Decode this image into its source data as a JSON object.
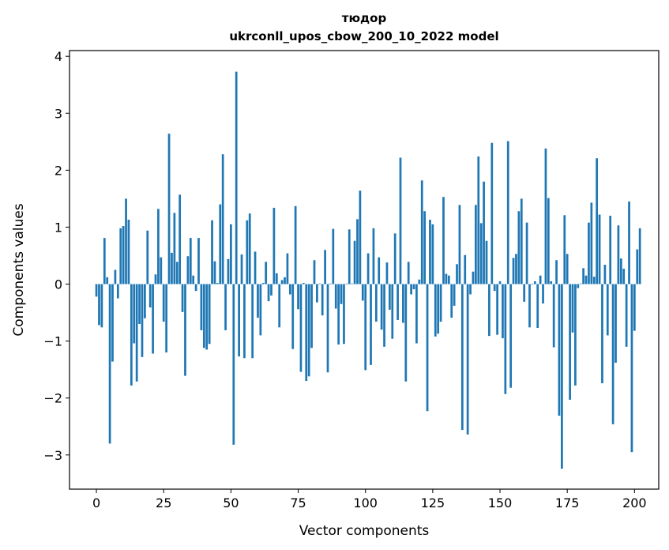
{
  "chart_data": {
    "type": "bar",
    "title_line1": "тюдор",
    "title_line2": "ukrconll_upos_cbow_200_10_2022 model",
    "xlabel": "Vector components",
    "ylabel": "Components values",
    "xlim": [
      -10,
      209
    ],
    "ylim": [
      -3.6,
      4.1
    ],
    "x_ticks": [
      0,
      25,
      50,
      75,
      100,
      125,
      150,
      175,
      200
    ],
    "y_ticks": [
      -3,
      -2,
      -1,
      0,
      1,
      2,
      3,
      4
    ],
    "y_tick_labels": [
      "−3",
      "−2",
      "−1",
      "0",
      "1",
      "2",
      "3",
      "4"
    ],
    "bar_color": "#1f77b4",
    "grid": false,
    "values": [
      -0.22,
      -0.72,
      -0.76,
      0.81,
      0.12,
      -2.8,
      -1.36,
      0.25,
      -0.25,
      0.98,
      1.02,
      1.5,
      1.13,
      -1.78,
      -1.04,
      -1.71,
      -0.7,
      -1.28,
      -0.6,
      0.94,
      -0.41,
      -1.22,
      0.17,
      1.32,
      0.47,
      -0.66,
      -1.2,
      2.64,
      0.55,
      1.25,
      0.39,
      1.57,
      -0.49,
      -1.61,
      0.49,
      0.81,
      0.15,
      -0.12,
      0.81,
      -0.81,
      -1.12,
      -1.15,
      -1.05,
      1.12,
      0.4,
      0.02,
      1.4,
      2.28,
      -0.81,
      0.44,
      1.05,
      -2.82,
      3.73,
      -1.27,
      0.52,
      -1.3,
      1.12,
      1.24,
      -1.3,
      0.57,
      -0.59,
      -0.9,
      0.02,
      0.39,
      -0.3,
      -0.2,
      1.34,
      0.19,
      -0.76,
      0.07,
      0.12,
      0.54,
      -0.18,
      -1.14,
      1.37,
      -0.44,
      -1.54,
      0.02,
      -1.7,
      -1.62,
      -1.12,
      0.42,
      -0.32,
      0.01,
      -0.55,
      0.6,
      -1.55,
      0.01,
      0.97,
      -0.43,
      -1.06,
      -0.35,
      -1.05,
      0.01,
      0.96,
      0.01,
      0.76,
      1.14,
      1.64,
      -0.29,
      -1.51,
      0.54,
      -1.42,
      0.98,
      -0.66,
      0.47,
      -0.8,
      -1.1,
      0.38,
      -0.45,
      -0.96,
      0.89,
      -0.63,
      2.22,
      -0.68,
      -1.71,
      0.39,
      -0.18,
      -0.09,
      -1.04,
      0.08,
      1.82,
      1.28,
      -2.23,
      1.13,
      1.05,
      -0.92,
      -0.87,
      -0.66,
      1.53,
      0.18,
      0.15,
      -0.59,
      -0.38,
      0.35,
      1.39,
      -2.56,
      0.51,
      -2.64,
      -0.18,
      0.22,
      1.39,
      2.24,
      1.07,
      1.8,
      0.76,
      -0.91,
      2.48,
      -0.12,
      -0.89,
      0.05,
      -0.95,
      -1.93,
      2.51,
      -1.82,
      0.46,
      0.53,
      1.28,
      1.5,
      -0.31,
      1.08,
      -0.76,
      -0.01,
      0.05,
      -0.77,
      0.15,
      -0.34,
      2.38,
      1.51,
      0.05,
      -1.11,
      0.42,
      -2.31,
      -3.24,
      1.21,
      0.53,
      -2.03,
      -0.85,
      -1.78,
      -0.07,
      0.01,
      0.28,
      0.15,
      1.08,
      1.43,
      0.13,
      2.21,
      1.22,
      -1.74,
      0.34,
      -0.9,
      1.2,
      -2.46,
      -1.38,
      1.03,
      0.45,
      0.27,
      -1.1,
      1.45,
      -2.95,
      -0.82,
      0.61,
      0.98
    ]
  }
}
